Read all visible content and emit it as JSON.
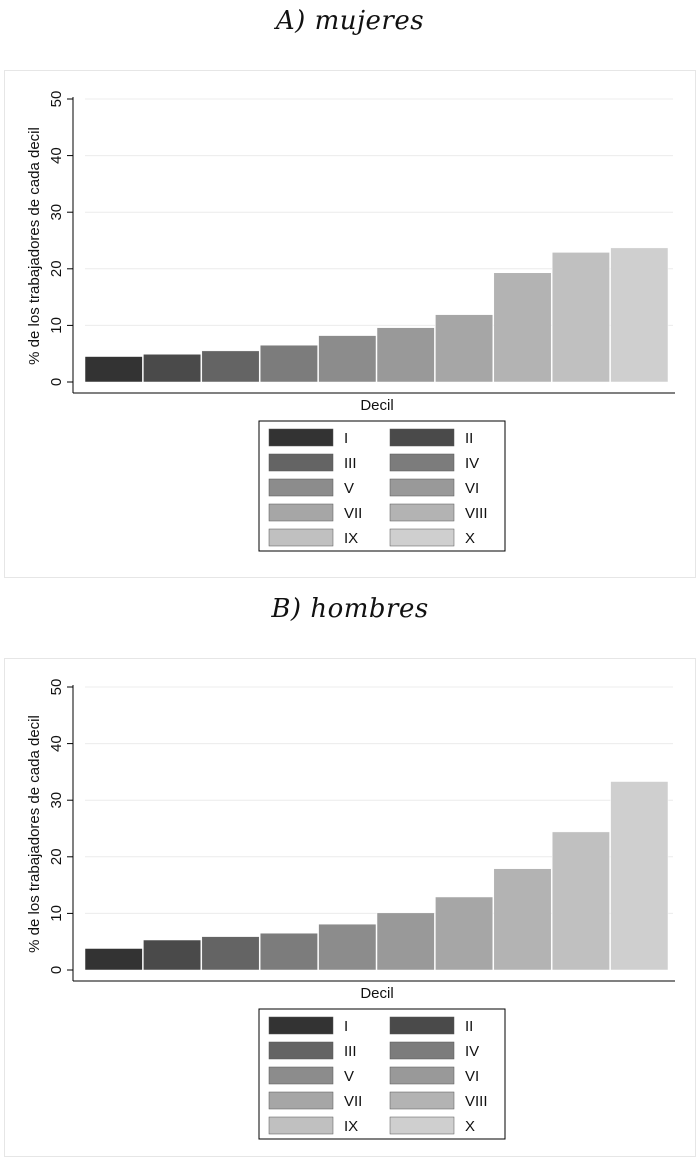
{
  "chart_data": [
    {
      "type": "bar",
      "title": "A) mujeres",
      "xlabel": "Decil",
      "ylabel": "% de los trabajadores de cada decil",
      "ylim": [
        0,
        50
      ],
      "yticks": [
        0,
        10,
        20,
        30,
        40,
        50
      ],
      "grid": true,
      "legend_placement": "bottom",
      "categories": [
        "I",
        "II",
        "III",
        "IV",
        "V",
        "VI",
        "VII",
        "VIII",
        "IX",
        "X"
      ],
      "values": [
        4.5,
        4.9,
        5.5,
        6.5,
        8.2,
        9.6,
        11.9,
        19.3,
        22.9,
        23.7
      ],
      "colors": [
        "#333333",
        "#4a4a4a",
        "#646464",
        "#7c7c7c",
        "#8c8c8c",
        "#999999",
        "#a6a6a6",
        "#b3b3b3",
        "#c0c0c0",
        "#cfcfcf"
      ]
    },
    {
      "type": "bar",
      "title": "B) hombres",
      "xlabel": "Decil",
      "ylabel": "% de los trabajadores de cada decil",
      "ylim": [
        0,
        50
      ],
      "yticks": [
        0,
        10,
        20,
        30,
        40,
        50
      ],
      "grid": true,
      "legend_placement": "bottom",
      "categories": [
        "I",
        "II",
        "III",
        "IV",
        "V",
        "VI",
        "VII",
        "VIII",
        "IX",
        "X"
      ],
      "values": [
        3.8,
        5.3,
        5.9,
        6.5,
        8.1,
        10.1,
        12.9,
        17.9,
        24.4,
        33.3
      ],
      "colors": [
        "#333333",
        "#4a4a4a",
        "#646464",
        "#7c7c7c",
        "#8c8c8c",
        "#999999",
        "#a6a6a6",
        "#b3b3b3",
        "#c0c0c0",
        "#cfcfcf"
      ]
    }
  ]
}
